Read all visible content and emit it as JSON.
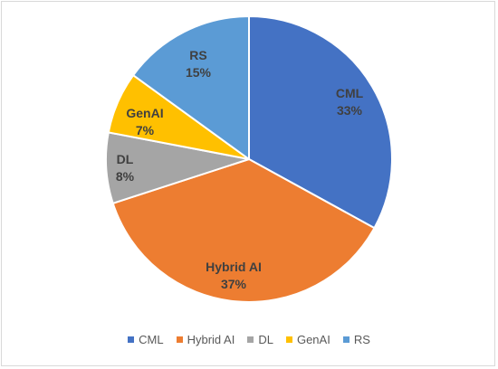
{
  "chart_data": {
    "type": "pie",
    "title": "",
    "categories": [
      "CML",
      "Hybrid AI",
      "DL",
      "GenAI",
      "RS"
    ],
    "values": [
      33,
      37,
      8,
      7,
      15
    ],
    "value_labels": [
      "33%",
      "37%",
      "8%",
      "7%",
      "15%"
    ],
    "colors": [
      "#4472C4",
      "#ED7D31",
      "#A5A5A5",
      "#FFC000",
      "#5B9BD5"
    ],
    "start_angle_deg": 0,
    "direction": "clockwise",
    "legend_position": "bottom"
  }
}
